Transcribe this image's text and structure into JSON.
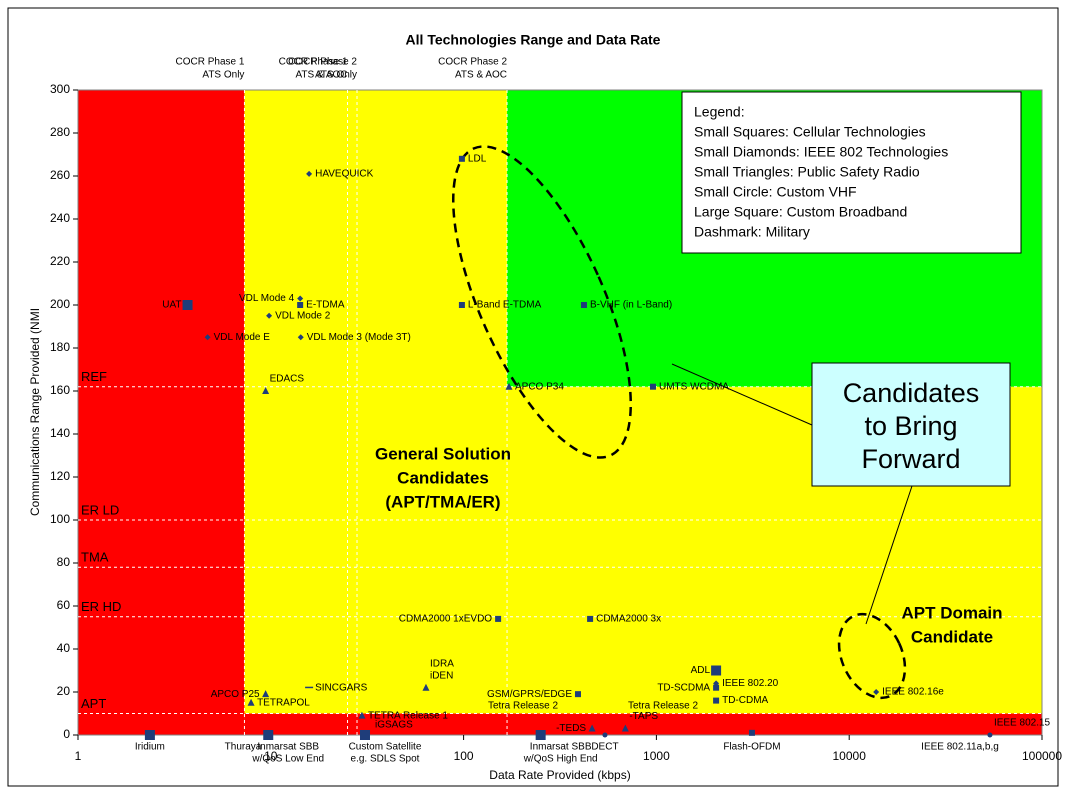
{
  "chart_data": {
    "type": "scatter",
    "title": "All Technologies Range and Data Rate",
    "xlabel": "Data Rate Provided (kbps)",
    "ylabel": "Communications Range Provided (NMI",
    "xlog": true,
    "xlim": [
      1,
      100000
    ],
    "ylim": [
      0,
      300
    ],
    "xticks": [
      1,
      10,
      100,
      1000,
      10000,
      100000
    ],
    "yticks": [
      0,
      20,
      40,
      60,
      80,
      100,
      120,
      140,
      160,
      180,
      200,
      220,
      240,
      260,
      280,
      300
    ],
    "marker_color": "#1f3d7a",
    "regions": [
      {
        "color": "#ff0000",
        "x": [
          1,
          7.3
        ],
        "y": [
          0,
          300
        ]
      },
      {
        "color": "#ffff00",
        "x": [
          7.3,
          100000
        ],
        "y": [
          0,
          300
        ]
      },
      {
        "color": "#00ff00",
        "x": [
          168,
          100000
        ],
        "y": [
          162,
          300
        ]
      },
      {
        "color": "#ff0000",
        "x": [
          7.3,
          100000
        ],
        "y": [
          0,
          10
        ]
      }
    ],
    "x_thresholds": [
      {
        "value": 7.3,
        "label": [
          "COCR Phase 1",
          "ATS Only"
        ]
      },
      {
        "value": 25,
        "label": [
          "COCR Phase 1",
          "ATS & AOC"
        ]
      },
      {
        "value": 28,
        "label": [
          "COCR Phase 2",
          "ATS Only"
        ]
      },
      {
        "value": 168,
        "label": [
          "COCR Phase 2",
          "ATS & AOC"
        ]
      }
    ],
    "y_thresholds": [
      {
        "value": 162,
        "label": "REF"
      },
      {
        "value": 100,
        "label": "ER LD"
      },
      {
        "value": 78,
        "label": "TMA"
      },
      {
        "value": 55,
        "label": "ER HD"
      },
      {
        "value": 10,
        "label": "APT"
      }
    ],
    "points": [
      {
        "label": "UAT",
        "x": 3.7,
        "y": 200,
        "shape": "large-square",
        "label_side": "left"
      },
      {
        "label": "VDL Mode E",
        "x": 4.7,
        "y": 185,
        "shape": "diamond",
        "label_side": "right"
      },
      {
        "label": "VDL Mode 4",
        "x": 14.2,
        "y": 203,
        "shape": "diamond",
        "label_side": "left"
      },
      {
        "label": "E-TDMA",
        "x": 14.2,
        "y": 200,
        "shape": "square",
        "label_side": "right"
      },
      {
        "label": "VDL Mode 2",
        "x": 9.8,
        "y": 195,
        "shape": "diamond",
        "label_side": "right"
      },
      {
        "label": "VDL Mode 3 (Mode 3T)",
        "x": 14.3,
        "y": 185,
        "shape": "diamond",
        "label_side": "right"
      },
      {
        "label": "HAVEQUICK",
        "x": 15.8,
        "y": 261,
        "shape": "diamond",
        "label_side": "right"
      },
      {
        "label": "EDACS",
        "x": 9.4,
        "y": 160,
        "shape": "triangle",
        "label_side": "above"
      },
      {
        "label": "LDL",
        "x": 98,
        "y": 268,
        "shape": "square",
        "label_side": "right"
      },
      {
        "label": "L-Band E-TDMA",
        "x": 98,
        "y": 200,
        "shape": "square",
        "label_side": "right"
      },
      {
        "label": "B-VHF (in L-Band)",
        "x": 421,
        "y": 200,
        "shape": "square",
        "label_side": "right"
      },
      {
        "label": "APCO P34",
        "x": 172,
        "y": 162,
        "shape": "triangle",
        "label_side": "right"
      },
      {
        "label": "UMTS WCDMA",
        "x": 960,
        "y": 162,
        "shape": "square",
        "label_side": "right"
      },
      {
        "label": "CDMA2000 1xEVDO",
        "x": 151,
        "y": 54,
        "shape": "square",
        "label_side": "left"
      },
      {
        "label": "CDMA2000 3x",
        "x": 453,
        "y": 54,
        "shape": "square",
        "label_side": "right"
      },
      {
        "label": "ADL",
        "x": 2040,
        "y": 30,
        "shape": "large-square",
        "label_side": "left"
      },
      {
        "label": "IEEE 802.20",
        "x": 2040,
        "y": 24,
        "shape": "diamond",
        "label_side": "right"
      },
      {
        "label": "TD-SCDMA",
        "x": 2040,
        "y": 22,
        "shape": "square",
        "label_side": "left"
      },
      {
        "label": "TD-CDMA",
        "x": 2040,
        "y": 16,
        "shape": "square",
        "label_side": "right"
      },
      {
        "label": "IEEE 802.16e",
        "x": 13800,
        "y": 20,
        "shape": "diamond",
        "label_side": "right"
      },
      {
        "label": "GSM/GPRS/EDGE",
        "x": 392,
        "y": 19,
        "shape": "square",
        "label_side": "left"
      },
      {
        "label": [
          "IDRA",
          "iDEN"
        ],
        "x": 63.8,
        "y": 22,
        "shape": "triangle",
        "label_side": "above"
      },
      {
        "label": "SINCGARS",
        "x": 15.8,
        "y": 22,
        "shape": "dash",
        "label_side": "right"
      },
      {
        "label": "APCO P25",
        "x": 9.4,
        "y": 19,
        "shape": "triangle",
        "label_side": "left"
      },
      {
        "label": "TETRAPOL",
        "x": 7.9,
        "y": 15,
        "shape": "triangle",
        "label_side": "right"
      },
      {
        "label": "TETRA Release 1",
        "x": 29.7,
        "y": 9,
        "shape": "triangle",
        "label_side": "right"
      },
      {
        "label": "-TEDS",
        "x": 464,
        "y": 3,
        "shape": "triangle",
        "label_side": "left"
      },
      {
        "label": "-TAPS",
        "x": 690,
        "y": 3,
        "shape": "triangle",
        "label_side": "above"
      },
      {
        "label": "DECT",
        "x": 541,
        "y": 0,
        "shape": "circle",
        "label_side": "below"
      },
      {
        "label": "Iridium",
        "x": 2.36,
        "y": 0,
        "shape": "large-square",
        "label_side": "below"
      },
      {
        "label": [
          "Inmarsat SBB",
          "w/QoS Low End"
        ],
        "x": 9.7,
        "y": 0,
        "shape": "large-square",
        "label_side": "below"
      },
      {
        "label": [
          "Custom Satellite",
          "e.g. SDLS Spot"
        ],
        "x": 30.8,
        "y": 0,
        "shape": "large-square",
        "label_side": "below"
      },
      {
        "label": [
          "Inmarsat SBB",
          "w/QoS High End"
        ],
        "x": 251,
        "y": 0,
        "shape": "large-square",
        "label_side": "below"
      },
      {
        "label": "Flash-OFDM",
        "x": 3130,
        "y": 1,
        "shape": "square",
        "label_side": "below"
      },
      {
        "label": "IEEE 802.15",
        "x": 53700,
        "y": 0,
        "shape": "circle",
        "label_side": "above"
      }
    ],
    "annotations": [
      {
        "text": [
          "IEEE 802.11a,b,g"
        ]
      },
      {
        "text": [
          "Thuraya"
        ]
      },
      {
        "text": [
          "iGSAGS"
        ]
      },
      {
        "text": [
          "Tetra Release 2"
        ]
      },
      {
        "text": [
          "Tetra Release 2"
        ]
      },
      {
        "text": [
          "General Solution",
          "Candidates",
          "(APT/TMA/ER)"
        ]
      },
      {
        "text": [
          "APT Domain",
          "Candidate"
        ]
      },
      {
        "text": [
          "Candidates",
          "to Bring",
          "Forward"
        ]
      }
    ],
    "legend_box": [
      "Legend:",
      "Small Squares: Cellular Technologies",
      "Small Diamonds: IEEE 802 Technologies",
      "Small Triangles:  Public Safety Radio",
      "Small Circle: Custom VHF",
      "Large Square: Custom Broadband",
      "Dashmark: Military"
    ]
  }
}
